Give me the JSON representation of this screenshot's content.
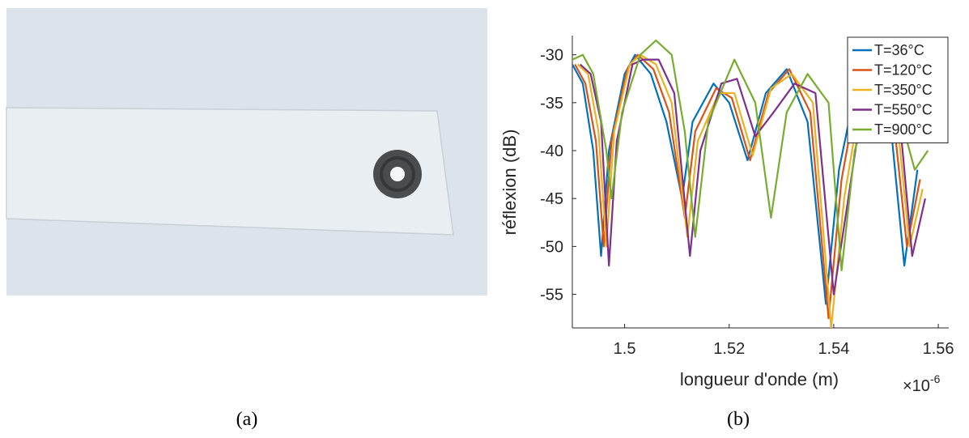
{
  "chart_data": {
    "type": "line",
    "x_label": "longueur d'onde (m)",
    "y_label": "réflexion (dB)",
    "x_multiplier_base": "×10",
    "x_multiplier_exponent": "-6",
    "xlim": [
      1.49,
      1.562
    ],
    "xticks": [
      1.5,
      1.52,
      1.54,
      1.56
    ],
    "ylim": [
      -58.5,
      -28
    ],
    "yticks": [
      -55,
      -50,
      -45,
      -40,
      -35,
      -30
    ],
    "legend": "top-right",
    "series": [
      {
        "name": "T=36°C",
        "color": "#0072bd",
        "x": [
          1.49,
          1.492,
          1.494,
          1.4955,
          1.497,
          1.5,
          1.502,
          1.505,
          1.508,
          1.511,
          1.513,
          1.517,
          1.52,
          1.5235,
          1.527,
          1.531,
          1.535,
          1.5385,
          1.541,
          1.544,
          1.547,
          1.551,
          1.5535,
          1.556
        ],
        "values": [
          -31,
          -33,
          -40,
          -51,
          -40,
          -32,
          -30,
          -32,
          -37,
          -45,
          -37,
          -33,
          -35,
          -41,
          -34,
          -31.5,
          -37,
          -56,
          -42,
          -34,
          -31,
          -38,
          -52,
          -42
        ]
      },
      {
        "name": "T=120°C",
        "color": "#d95319",
        "x": [
          1.4905,
          1.4925,
          1.4945,
          1.496,
          1.4975,
          1.5005,
          1.5025,
          1.5055,
          1.5085,
          1.5115,
          1.5135,
          1.5175,
          1.5205,
          1.524,
          1.5275,
          1.5315,
          1.5355,
          1.539,
          1.5415,
          1.5445,
          1.5475,
          1.5515,
          1.554,
          1.5565
        ],
        "values": [
          -31,
          -33,
          -39,
          -50,
          -39,
          -31.5,
          -30,
          -31.5,
          -36,
          -47,
          -38,
          -33.5,
          -34.5,
          -41,
          -34,
          -31.5,
          -36,
          -57.5,
          -43,
          -34,
          -31,
          -37,
          -50,
          -43
        ]
      },
      {
        "name": "T=350°C",
        "color": "#edb120",
        "x": [
          1.491,
          1.493,
          1.495,
          1.4965,
          1.498,
          1.501,
          1.503,
          1.506,
          1.509,
          1.512,
          1.514,
          1.518,
          1.521,
          1.5245,
          1.528,
          1.532,
          1.536,
          1.5395,
          1.542,
          1.545,
          1.548,
          1.552,
          1.5545,
          1.557
        ],
        "values": [
          -31,
          -32,
          -38,
          -50,
          -38,
          -31,
          -30,
          -31,
          -35,
          -49,
          -39,
          -34,
          -34,
          -40.5,
          -33.5,
          -32,
          -35,
          -58.5,
          -45,
          -35,
          -31.5,
          -36,
          -50,
          -44
        ]
      },
      {
        "name": "T=550°C",
        "color": "#7e2f8e",
        "x": [
          1.4915,
          1.4935,
          1.4955,
          1.497,
          1.4985,
          1.5015,
          1.5035,
          1.5065,
          1.5095,
          1.5125,
          1.5145,
          1.5185,
          1.5215,
          1.525,
          1.5285,
          1.5325,
          1.5365,
          1.54,
          1.5425,
          1.5455,
          1.5485,
          1.5525,
          1.555,
          1.5575
        ],
        "values": [
          -31,
          -32,
          -37,
          -52,
          -39,
          -31,
          -30.5,
          -30.5,
          -34,
          -51,
          -40,
          -33,
          -32.5,
          -38.5,
          -36,
          -33,
          -34,
          -55,
          -46,
          -35,
          -32,
          -36,
          -51,
          -45
        ]
      },
      {
        "name": "T=900°C",
        "color": "#77ac30",
        "x": [
          1.49,
          1.492,
          1.494,
          1.4965,
          1.4975,
          1.4995,
          1.503,
          1.506,
          1.509,
          1.5115,
          1.5135,
          1.516,
          1.521,
          1.525,
          1.528,
          1.531,
          1.535,
          1.539,
          1.5415,
          1.544,
          1.548,
          1.552,
          1.5555,
          1.558
        ],
        "values": [
          -30.5,
          -30,
          -32,
          -40,
          -45,
          -36,
          -30,
          -28.5,
          -30,
          -38,
          -49,
          -37,
          -30.5,
          -35,
          -47,
          -36,
          -32,
          -35,
          -52.5,
          -40,
          -33,
          -35,
          -42,
          -40
        ]
      }
    ]
  },
  "captions": [
    "(a)",
    "(b)"
  ]
}
